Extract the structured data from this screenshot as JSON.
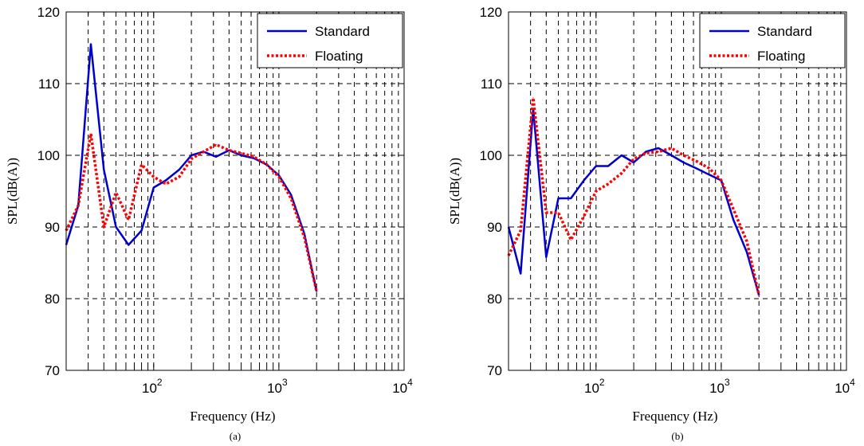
{
  "chart_data": [
    {
      "type": "line",
      "panel_label": "(a)",
      "xlabel": "Frequency (Hz)",
      "ylabel": "SPL(dB(A))",
      "xscale": "log",
      "xlim": [
        20,
        10000
      ],
      "ylim": [
        70,
        120
      ],
      "yticks": [
        70,
        80,
        90,
        100,
        110,
        120
      ],
      "xticks": [
        {
          "value": 100,
          "base": "10",
          "exp": "2"
        },
        {
          "value": 1000,
          "base": "10",
          "exp": "3"
        },
        {
          "value": 10000,
          "base": "10",
          "exp": "4"
        }
      ],
      "grid": true,
      "legend_position": "top-right",
      "series": [
        {
          "name": "Standard",
          "color": "#0000cc",
          "style": "solid",
          "points": [
            [
              20,
              87.5
            ],
            [
              25,
              93
            ],
            [
              31.5,
              115.5
            ],
            [
              40,
              98
            ],
            [
              50,
              90
            ],
            [
              63,
              87.5
            ],
            [
              80,
              89.5
            ],
            [
              100,
              95.5
            ],
            [
              125,
              96.5
            ],
            [
              160,
              98
            ],
            [
              200,
              100
            ],
            [
              250,
              100.5
            ],
            [
              315,
              99.8
            ],
            [
              400,
              100.7
            ],
            [
              500,
              100
            ],
            [
              630,
              99.6
            ],
            [
              800,
              98.7
            ],
            [
              1000,
              97.2
            ],
            [
              1250,
              94.5
            ],
            [
              1600,
              89
            ],
            [
              2000,
              81
            ]
          ]
        },
        {
          "name": "Floating",
          "color": "#ff0000",
          "style": "dotted",
          "points": [
            [
              20,
              89.5
            ],
            [
              25,
              93
            ],
            [
              31.5,
              103
            ],
            [
              40,
              90
            ],
            [
              50,
              94.8
            ],
            [
              63,
              91
            ],
            [
              80,
              98.7
            ],
            [
              100,
              97
            ],
            [
              125,
              96
            ],
            [
              160,
              97
            ],
            [
              200,
              99.5
            ],
            [
              250,
              100.5
            ],
            [
              315,
              101.5
            ],
            [
              400,
              100.7
            ],
            [
              500,
              100.3
            ],
            [
              630,
              99.8
            ],
            [
              800,
              98.7
            ],
            [
              1000,
              97
            ],
            [
              1250,
              94
            ],
            [
              1600,
              88.5
            ],
            [
              2000,
              81
            ]
          ]
        }
      ]
    },
    {
      "type": "line",
      "panel_label": "(b)",
      "xlabel": "Frequency (Hz)",
      "ylabel": "SPL(dB(A))",
      "xscale": "log",
      "xlim": [
        20,
        10000
      ],
      "ylim": [
        70,
        120
      ],
      "yticks": [
        70,
        80,
        90,
        100,
        110,
        120
      ],
      "xticks": [
        {
          "value": 100,
          "base": "10",
          "exp": "2"
        },
        {
          "value": 1000,
          "base": "10",
          "exp": "3"
        },
        {
          "value": 10000,
          "base": "10",
          "exp": "4"
        }
      ],
      "grid": true,
      "legend_position": "top-right",
      "series": [
        {
          "name": "Standard",
          "color": "#0000cc",
          "style": "solid",
          "points": [
            [
              20,
              90
            ],
            [
              25,
              83.5
            ],
            [
              31.5,
              106.5
            ],
            [
              40,
              85.8
            ],
            [
              50,
              94
            ],
            [
              63,
              94
            ],
            [
              80,
              96.5
            ],
            [
              100,
              98.5
            ],
            [
              125,
              98.5
            ],
            [
              160,
              100
            ],
            [
              200,
              99
            ],
            [
              250,
              100.5
            ],
            [
              315,
              101
            ],
            [
              400,
              100
            ],
            [
              500,
              99
            ],
            [
              630,
              98.2
            ],
            [
              800,
              97.3
            ],
            [
              1000,
              96.5
            ],
            [
              1250,
              91
            ],
            [
              1600,
              86.5
            ],
            [
              2000,
              80.5
            ]
          ]
        },
        {
          "name": "Floating",
          "color": "#ff0000",
          "style": "dotted",
          "points": [
            [
              20,
              86
            ],
            [
              25,
              89.5
            ],
            [
              31.5,
              108
            ],
            [
              40,
              92
            ],
            [
              50,
              92
            ],
            [
              63,
              88.2
            ],
            [
              80,
              91.5
            ],
            [
              100,
              95
            ],
            [
              125,
              96
            ],
            [
              160,
              97.5
            ],
            [
              200,
              99.5
            ],
            [
              250,
              100.3
            ],
            [
              315,
              100.5
            ],
            [
              400,
              101
            ],
            [
              500,
              100
            ],
            [
              630,
              99.2
            ],
            [
              800,
              98.2
            ],
            [
              1000,
              96.5
            ],
            [
              1250,
              92.5
            ],
            [
              1600,
              88
            ],
            [
              2000,
              80.5
            ]
          ]
        }
      ]
    }
  ]
}
